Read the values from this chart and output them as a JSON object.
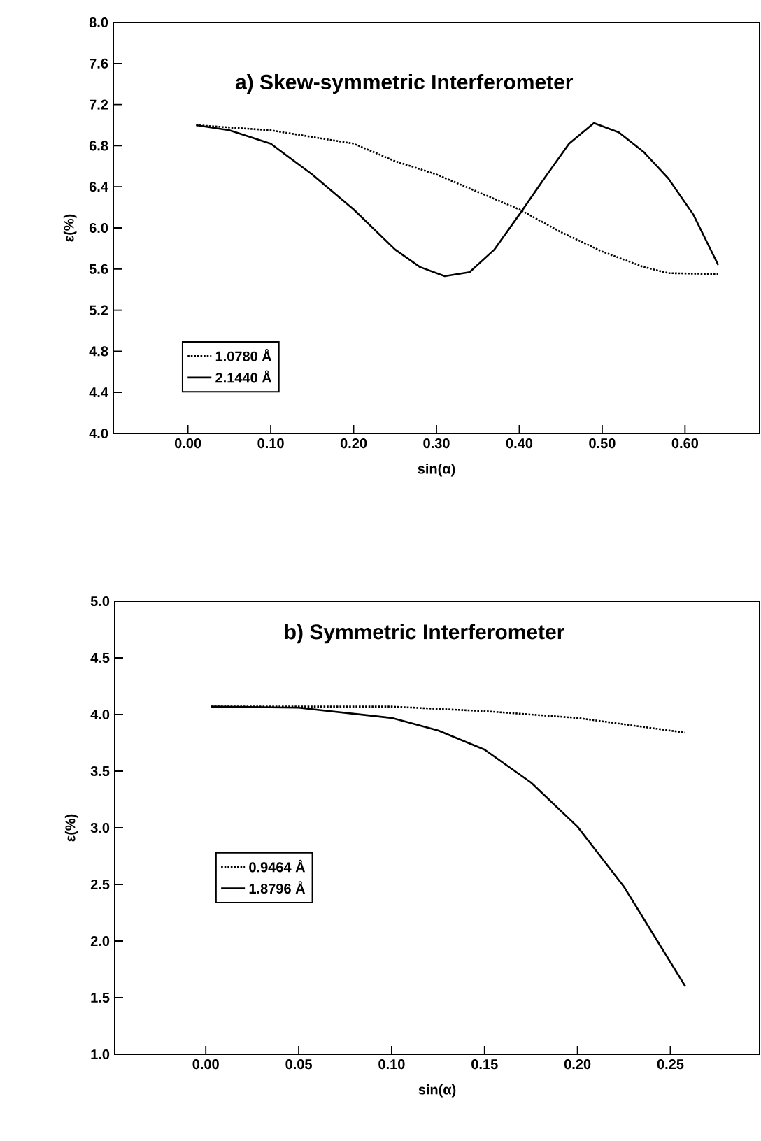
{
  "chart_data": [
    {
      "type": "line",
      "title": "a) Skew-symmetric Interferometer",
      "xlabel": "sin(α)",
      "ylabel": "ε(%)",
      "xlim": [
        -0.09,
        0.69
      ],
      "ylim": [
        4.0,
        8.0
      ],
      "xticks": [
        {
          "value": 0,
          "label": "0.00"
        },
        {
          "value": 0.1,
          "label": "0.10"
        },
        {
          "value": 0.2,
          "label": "0.20"
        },
        {
          "value": 0.3,
          "label": "0.30"
        },
        {
          "value": 0.4,
          "label": "0.40"
        },
        {
          "value": 0.5,
          "label": "0.50"
        },
        {
          "value": 0.6,
          "label": "0.60"
        }
      ],
      "yticks": [
        {
          "value": 4.0,
          "label": "4.0"
        },
        {
          "value": 4.4,
          "label": "4.4"
        },
        {
          "value": 4.8,
          "label": "4.8"
        },
        {
          "value": 5.2,
          "label": "5.2"
        },
        {
          "value": 5.6,
          "label": "5.6"
        },
        {
          "value": 6.0,
          "label": "6.0"
        },
        {
          "value": 6.4,
          "label": "6.4"
        },
        {
          "value": 6.8,
          "label": "6.8"
        },
        {
          "value": 7.2,
          "label": "7.2"
        },
        {
          "value": 7.6,
          "label": "7.6"
        },
        {
          "value": 8.0,
          "label": "8.0"
        }
      ],
      "grid": false,
      "legend": "bottom left",
      "marker": "none",
      "series": [
        {
          "name": "1.0780 Å",
          "color": "#000000",
          "line_style": "dotted",
          "x": [
            0.01,
            0.1,
            0.2,
            0.25,
            0.3,
            0.35,
            0.4,
            0.45,
            0.5,
            0.55,
            0.58,
            0.64
          ],
          "values": [
            7.0,
            6.95,
            6.82,
            6.65,
            6.52,
            6.35,
            6.18,
            5.96,
            5.77,
            5.62,
            5.56,
            5.55
          ]
        },
        {
          "name": "2.1440 Å",
          "color": "#000000",
          "line_style": "solid",
          "x": [
            0.01,
            0.05,
            0.1,
            0.15,
            0.2,
            0.25,
            0.28,
            0.31,
            0.34,
            0.37,
            0.4,
            0.43,
            0.46,
            0.49,
            0.52,
            0.55,
            0.58,
            0.61,
            0.64
          ],
          "values": [
            7.0,
            6.95,
            6.82,
            6.52,
            6.18,
            5.79,
            5.62,
            5.53,
            5.57,
            5.79,
            6.13,
            6.48,
            6.82,
            7.02,
            6.93,
            6.74,
            6.48,
            6.13,
            5.64
          ]
        }
      ]
    },
    {
      "type": "line",
      "title": "b) Symmetric Interferometer",
      "xlabel": "sin(α)",
      "ylabel": "ε(%)",
      "xlim": [
        -0.049,
        0.298
      ],
      "ylim": [
        1.0,
        5.0
      ],
      "xticks": [
        {
          "value": 0,
          "label": "0.00"
        },
        {
          "value": 0.05,
          "label": "0.05"
        },
        {
          "value": 0.1,
          "label": "0.10"
        },
        {
          "value": 0.15,
          "label": "0.15"
        },
        {
          "value": 0.2,
          "label": "0.20"
        },
        {
          "value": 0.25,
          "label": "0.25"
        }
      ],
      "yticks": [
        {
          "value": 1.0,
          "label": "1.0"
        },
        {
          "value": 1.5,
          "label": "1.5"
        },
        {
          "value": 2.0,
          "label": "2.0"
        },
        {
          "value": 2.5,
          "label": "2.5"
        },
        {
          "value": 3.0,
          "label": "3.0"
        },
        {
          "value": 3.5,
          "label": "3.5"
        },
        {
          "value": 4.0,
          "label": "4.0"
        },
        {
          "value": 4.5,
          "label": "4.5"
        },
        {
          "value": 5.0,
          "label": "5.0"
        }
      ],
      "grid": false,
      "legend": "left",
      "marker": "none",
      "series": [
        {
          "name": "0.9464 Å",
          "color": "#000000",
          "line_style": "dotted",
          "x": [
            0.003,
            0.05,
            0.1,
            0.15,
            0.2,
            0.258
          ],
          "values": [
            4.07,
            4.07,
            4.07,
            4.03,
            3.97,
            3.84
          ]
        },
        {
          "name": "1.8796 Å",
          "color": "#000000",
          "line_style": "solid",
          "x": [
            0.003,
            0.05,
            0.1,
            0.125,
            0.15,
            0.175,
            0.2,
            0.225,
            0.24,
            0.258
          ],
          "values": [
            4.07,
            4.06,
            3.97,
            3.86,
            3.69,
            3.4,
            3.01,
            2.48,
            2.08,
            1.6
          ]
        }
      ]
    }
  ]
}
